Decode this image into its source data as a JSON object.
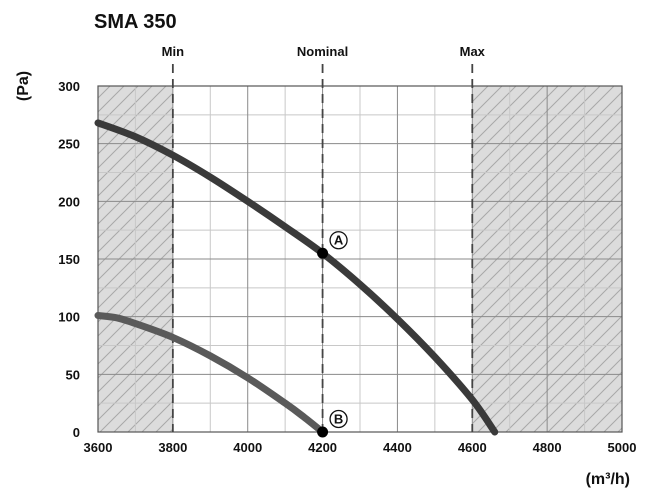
{
  "chart_data": {
    "type": "line",
    "title": "SMA 350",
    "xlabel": "(m³/h)",
    "ylabel": "(Pa)",
    "xlim": [
      3600,
      5000
    ],
    "ylim": [
      0,
      300
    ],
    "x_ticks": [
      3600,
      3800,
      4000,
      4200,
      4400,
      4600,
      4800,
      5000
    ],
    "y_ticks": [
      0,
      50,
      100,
      150,
      200,
      250,
      300
    ],
    "grid": true,
    "ref_lines": [
      {
        "label": "Min",
        "x": 3800
      },
      {
        "label": "Nominal",
        "x": 4200
      },
      {
        "label": "Max",
        "x": 4600
      }
    ],
    "shaded_regions": [
      {
        "from": 3600,
        "to": 3800
      },
      {
        "from": 4600,
        "to": 5000
      }
    ],
    "series": [
      {
        "color": "#3a3a3a",
        "x": [
          3600,
          3700,
          3800,
          3900,
          4000,
          4100,
          4200,
          4300,
          4400,
          4500,
          4600,
          4660
        ],
        "y": [
          268,
          256,
          240,
          221,
          200,
          178,
          155,
          128,
          98,
          65,
          28,
          0
        ]
      },
      {
        "color": "#5a5a5a",
        "x": [
          3600,
          3650,
          3700,
          3800,
          3900,
          4000,
          4100,
          4150,
          4200
        ],
        "y": [
          101,
          99,
          94,
          82,
          66,
          47,
          25,
          13,
          0
        ]
      }
    ],
    "points": [
      {
        "label": "A",
        "x": 4200,
        "y": 155
      },
      {
        "label": "B",
        "x": 4200,
        "y": 0
      }
    ]
  }
}
